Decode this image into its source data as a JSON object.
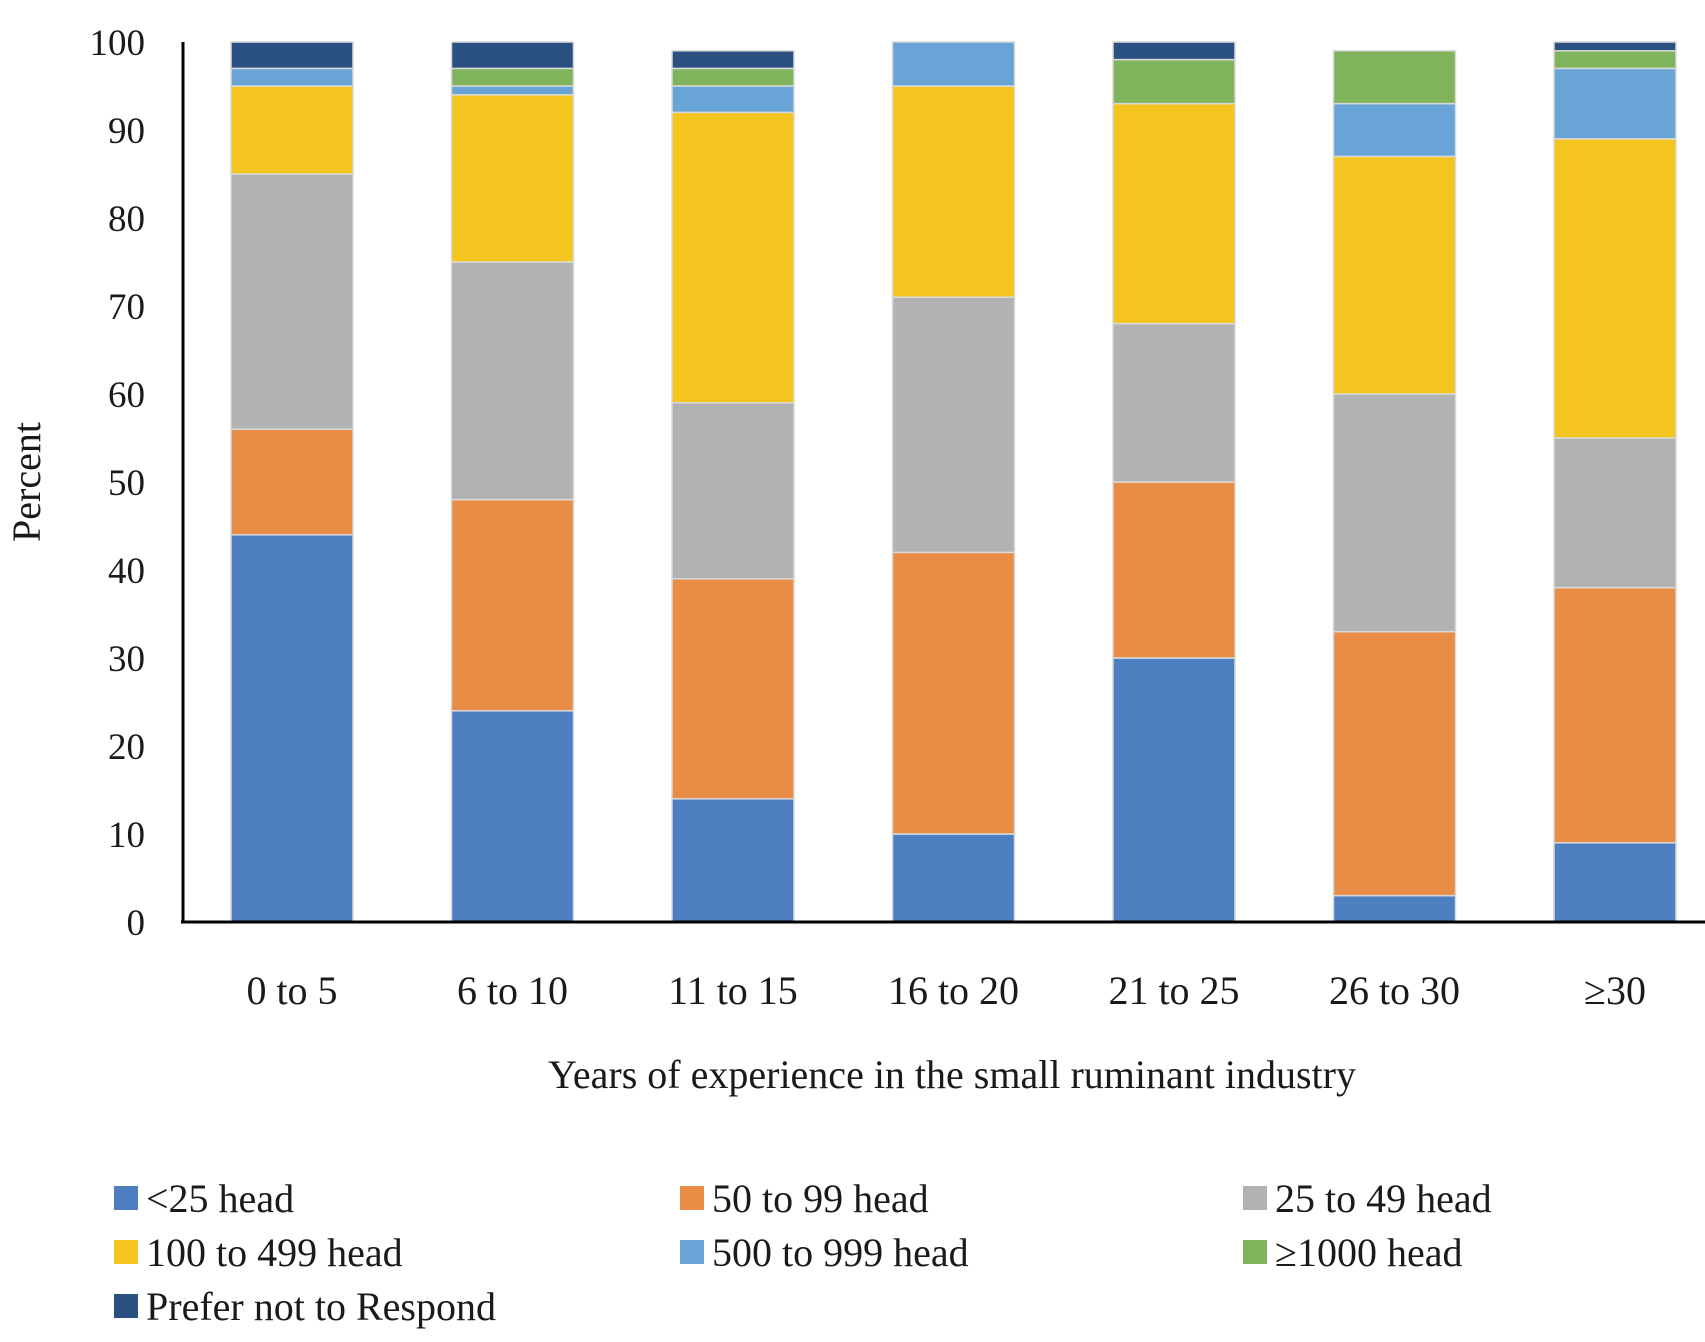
{
  "chart_data": {
    "type": "bar",
    "stacked": true,
    "xlabel": "Years of experience in the small ruminant industry",
    "ylabel": "Percent",
    "ylim": [
      0,
      100
    ],
    "yticks": [
      0,
      10,
      20,
      30,
      40,
      50,
      60,
      70,
      80,
      90,
      100
    ],
    "grid": false,
    "legend_position": "bottom",
    "categories": [
      "0 to 5",
      "6 to 10",
      "11 to 15",
      "16 to 20",
      "21 to 25",
      "26 to 30",
      "≥30"
    ],
    "series": [
      {
        "name": "<25 head",
        "color": "#4e7fc1",
        "values": [
          44,
          24,
          14,
          10,
          30,
          3,
          9
        ]
      },
      {
        "name": "50 to 99 head",
        "color": "#e98c45",
        "values": [
          12,
          24,
          25,
          32,
          20,
          30,
          29
        ]
      },
      {
        "name": "25 to 49 head",
        "color": "#b2b2b2",
        "values": [
          29,
          27,
          20,
          29,
          18,
          27,
          17
        ]
      },
      {
        "name": "100 to 499 head",
        "color": "#f5c51f",
        "values": [
          10,
          19,
          33,
          24,
          25,
          27,
          34
        ]
      },
      {
        "name": "500 to 999 head",
        "color": "#68a5d6",
        "values": [
          2,
          1,
          3,
          5,
          0,
          6,
          8
        ]
      },
      {
        "name": "≥1000 head",
        "color": "#7fb45c",
        "values": [
          0,
          2,
          2,
          0,
          5,
          6,
          2
        ]
      },
      {
        "name": "Prefer not to Respond",
        "color": "#2b5082",
        "values": [
          3,
          3,
          2,
          0,
          2,
          0,
          1
        ]
      }
    ]
  }
}
